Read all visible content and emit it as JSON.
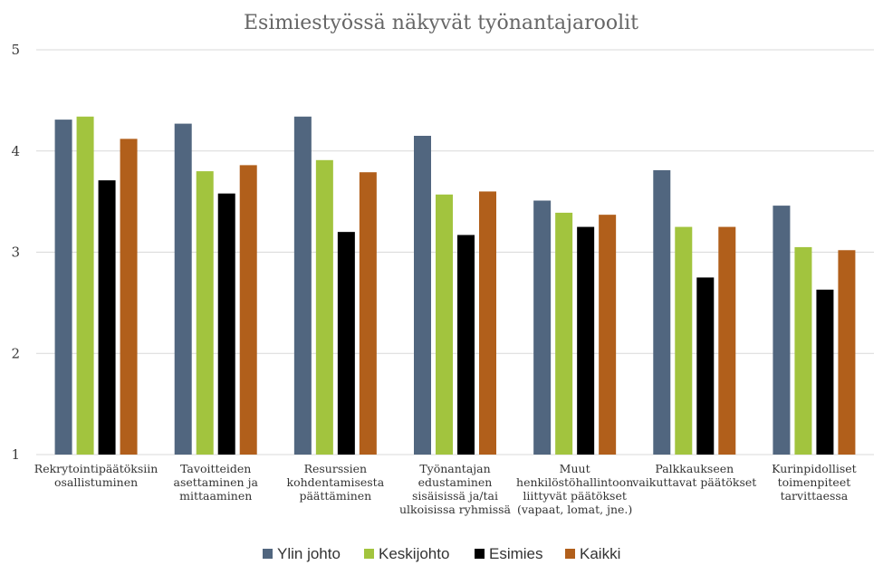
{
  "chart_data": {
    "type": "bar",
    "title": "Esimiestyössä näkyvät työnantajaroolit",
    "ylim": [
      1,
      5
    ],
    "yticks": [
      1,
      2,
      3,
      4,
      5
    ],
    "grid": true,
    "legend_position": "bottom",
    "categories": [
      [
        "Rekrytointipäätöksiin",
        "osallistuminen"
      ],
      [
        "Tavoitteiden",
        "asettaminen ja",
        "mittaaminen"
      ],
      [
        "Resurssien",
        "kohdentamisesta",
        "päättäminen"
      ],
      [
        "Työnantajan",
        "edustaminen",
        "sisäisissä ja/tai",
        "ulkoisissa ryhmissä"
      ],
      [
        "Muut",
        "henkilöstöhallintoon",
        "liittyvät päätökset",
        "(vapaat, lomat, jne.)"
      ],
      [
        "Palkkaukseen",
        "vaikuttavat päätökset"
      ],
      [
        "Kurinpidolliset",
        "toimenpiteet",
        "tarvittaessa"
      ]
    ],
    "series": [
      {
        "name": "Ylin johto",
        "color": "#51667f",
        "values": [
          4.31,
          4.27,
          4.34,
          4.15,
          3.51,
          3.81,
          3.46
        ]
      },
      {
        "name": "Keskijohto",
        "color": "#a2c43e",
        "values": [
          4.34,
          3.8,
          3.91,
          3.57,
          3.39,
          3.25,
          3.05
        ]
      },
      {
        "name": "Esimies",
        "color": "#000000",
        "values": [
          3.71,
          3.58,
          3.2,
          3.17,
          3.25,
          2.75,
          2.63
        ]
      },
      {
        "name": "Kaikki",
        "color": "#b15f1b",
        "values": [
          4.12,
          3.86,
          3.79,
          3.6,
          3.37,
          3.25,
          3.02
        ]
      }
    ]
  }
}
